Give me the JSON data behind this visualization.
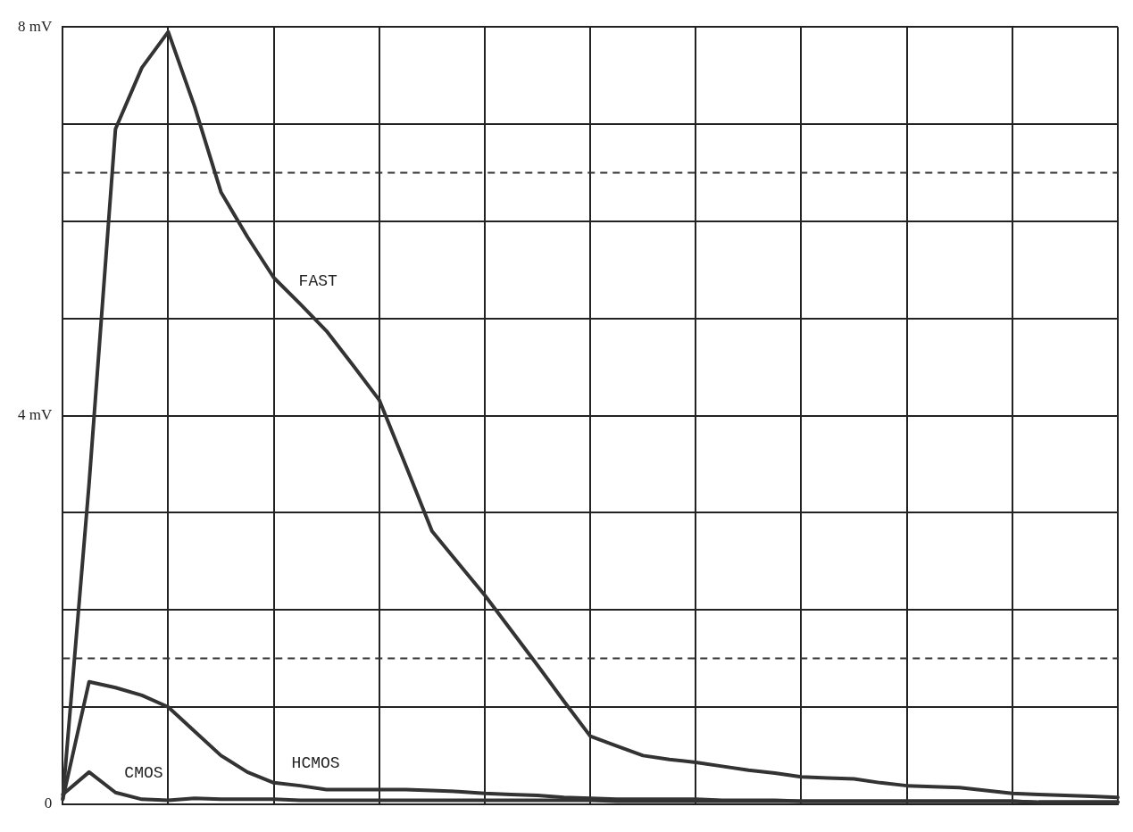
{
  "chart_data": {
    "type": "line",
    "ylim": [
      0,
      8
    ],
    "categories": [
      null,
      null,
      null,
      null,
      null,
      null,
      null,
      null,
      null,
      null,
      null,
      null,
      null,
      null,
      null,
      null,
      null,
      null,
      null,
      null,
      null,
      null,
      null,
      null,
      null,
      null,
      null,
      null,
      null,
      null,
      null,
      null,
      null,
      null,
      null,
      null,
      null,
      null,
      null,
      null,
      null
    ],
    "yticks": [
      0,
      {
        "value": 1,
        "label": null
      },
      {
        "value": 2,
        "label": null
      },
      {
        "value": 3,
        "label": null
      },
      {
        "value": 4,
        "label": "4 mV"
      },
      {
        "value": 5,
        "label": null
      },
      {
        "value": 6,
        "label": null
      },
      {
        "value": 7,
        "label": null
      },
      {
        "value": 8,
        "label": "8 mV"
      }
    ],
    "tick_labels": "y",
    "grid": true,
    "legend": false,
    "marker": "none",
    "line_style": "solid",
    "series": [
      {
        "name": "FAST",
        "color": "#333333",
        "values": [
          0.05,
          3.3,
          6.95,
          7.58,
          7.95,
          7.18,
          6.3,
          5.84,
          5.42,
          5.15,
          4.87,
          4.52,
          4.16,
          3.49,
          2.81,
          2.48,
          2.15,
          1.79,
          1.43,
          1.06,
          0.7,
          0.6,
          0.5,
          0.46,
          0.43,
          0.39,
          0.35,
          0.32,
          0.28,
          0.27,
          0.26,
          0.22,
          0.19,
          0.18,
          0.17,
          0.14,
          0.11,
          0.1,
          0.09,
          0.08,
          0.07
        ]
      },
      {
        "name": "HCMOS",
        "color": "#333333",
        "values": [
          0.05,
          1.26,
          1.2,
          1.12,
          1.0,
          0.75,
          0.5,
          0.33,
          0.22,
          0.19,
          0.15,
          0.15,
          0.15,
          0.15,
          0.14,
          0.13,
          0.11,
          0.1,
          0.09,
          0.07,
          0.06,
          0.05,
          0.05,
          0.05,
          0.05,
          0.04,
          0.04,
          0.04,
          0.03,
          0.03,
          0.03,
          0.03,
          0.03,
          0.03,
          0.03,
          0.03,
          0.03,
          0.02,
          0.02,
          0.02,
          0.02
        ]
      },
      {
        "name": "CMOS",
        "color": "#333333",
        "values": [
          0.1,
          0.33,
          0.12,
          0.05,
          0.04,
          0.06,
          0.05,
          0.05,
          0.05,
          0.04,
          0.04,
          0.04,
          0.04,
          0.04,
          0.04,
          0.04,
          0.04,
          0.04,
          0.04,
          0.04,
          0.04,
          0.03,
          0.03,
          0.03,
          0.03,
          0.03,
          0.03,
          0.03,
          0.03,
          0.03,
          0.03,
          0.03,
          0.03,
          0.03,
          0.03,
          0.03,
          0.03,
          0.02,
          0.02,
          0.02,
          0.02
        ]
      }
    ],
    "ref_lines": [
      {
        "axis": "y",
        "value": 6.5,
        "line_style": "dashed",
        "color": "#333333"
      },
      {
        "axis": "y",
        "value": 1.5,
        "line_style": "dashed",
        "color": "#333333"
      }
    ]
  }
}
